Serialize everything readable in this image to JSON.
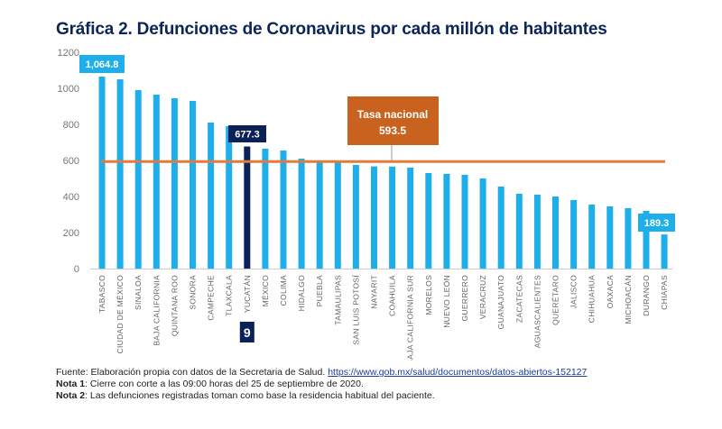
{
  "title": "Gráfica 2. Defunciones de Coronavirus por cada millón de habitantes",
  "colors": {
    "bar": "#1eaeea",
    "highlight_bar": "#0b2158",
    "national_line": "#e07b39",
    "national_box": "#c9611f",
    "title": "#0d2457"
  },
  "chart_data": {
    "type": "bar",
    "title": "Gráfica 2. Defunciones de Coronavirus por cada millón de habitantes",
    "xlabel": "",
    "ylabel": "",
    "ylim": [
      0,
      1200
    ],
    "yticks": [
      0,
      200,
      400,
      600,
      800,
      1000,
      1200
    ],
    "grid": false,
    "categories": [
      "TABASCO",
      "CIUDAD DE MÉXICO",
      "SINALOA",
      "BAJA CALIFORNIA",
      "QUINTANA ROO",
      "SONORA",
      "CAMPECHE",
      "TLAXCALA",
      "YUCATÁN",
      "MÉXICO",
      "COLIMA",
      "HIDALGO",
      "PUEBLA",
      "TAMAULIPAS",
      "SAN LUIS POTOSÍ",
      "NAYARIT",
      "COAHUILA",
      "BAJA CALIFORNIA SUR",
      "MORELOS",
      "NUEVO LEÓN",
      "GUERRERO",
      "VERACRUZ",
      "GUANAJUATO",
      "ZACATECAS",
      "AGUASCALIENTES",
      "QUERÉTARO",
      "JALISCO",
      "CHIHUAHUA",
      "OAXACA",
      "MICHOACÁN",
      "DURANGO",
      "CHIAPAS"
    ],
    "values": [
      1064.8,
      1050,
      990,
      965,
      945,
      930,
      810,
      790,
      677.3,
      665,
      655,
      610,
      592,
      590,
      575,
      567,
      566,
      560,
      530,
      525,
      520,
      500,
      455,
      415,
      410,
      400,
      380,
      355,
      345,
      335,
      320,
      189.3
    ],
    "highlight": {
      "category": "YUCATÁN",
      "value": 677.3,
      "label": "677.3",
      "rank": "9"
    },
    "data_labels": [
      {
        "category": "TABASCO",
        "label": "1,064.8"
      },
      {
        "category": "YUCATÁN",
        "label": "677.3"
      },
      {
        "category": "CHIAPAS",
        "label": "189.3"
      }
    ],
    "reference_line": {
      "label": "Tasa nacional",
      "value": 593.5,
      "value_label": "593.5"
    }
  },
  "notes": {
    "source_prefix": "Fuente:",
    "source_text": " Elaboración propia con datos de la Secretaria de Salud. ",
    "source_link": "https://www.gob.mx/salud/documentos/datos-abiertos-152127",
    "note1_label": "Nota 1",
    "note1_text": ": Cierre con corte a las 09:00 horas del 25 de septiembre de 2020.",
    "note2_label": "Nota 2",
    "note2_text": ": Las defunciones registradas toman como base la residencia habitual del paciente."
  }
}
